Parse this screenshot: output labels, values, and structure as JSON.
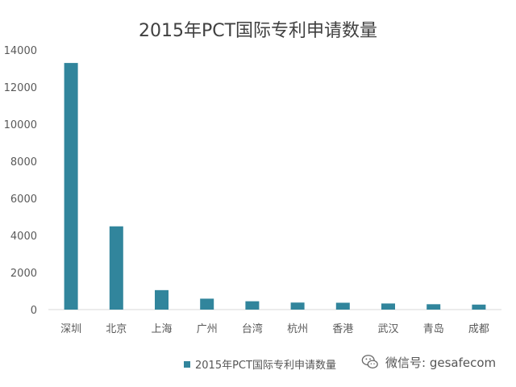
{
  "chart_data": {
    "type": "bar",
    "title": "2015年PCT国际专利申请数量",
    "categories": [
      "深圳",
      "北京",
      "上海",
      "广州",
      "台湾",
      "杭州",
      "香港",
      "武汉",
      "青岛",
      "成都"
    ],
    "series": [
      {
        "name": "2015年PCT国际专利申请数量",
        "values": [
          13300,
          4490,
          1050,
          590,
          450,
          380,
          370,
          330,
          290,
          270
        ],
        "color": "#31859c"
      }
    ],
    "ylim": [
      0,
      14000
    ],
    "yticks": [
      0,
      2000,
      4000,
      6000,
      8000,
      10000,
      12000,
      14000
    ],
    "grid": false,
    "legend_position": "bottom"
  },
  "watermark": {
    "text": "微信号: gesafecom",
    "icon": "wechat-icon"
  }
}
